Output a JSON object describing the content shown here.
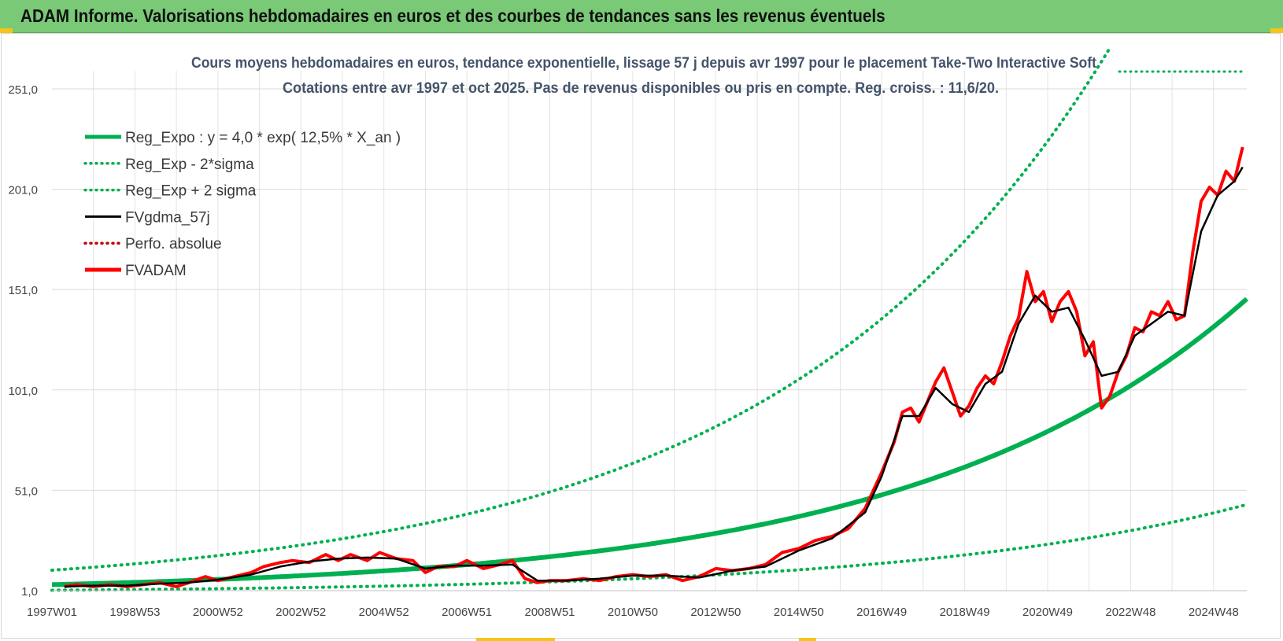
{
  "header": {
    "title": "ADAM Informe. Valorisations hebdomadaires en euros et des courbes de tendances sans les revenus éventuels"
  },
  "colors": {
    "header_bg": "#7ac977",
    "trend": "#00b050",
    "price": "#ff0000",
    "average": "#000000",
    "perfo": "#c00000",
    "title_text": "#44546a"
  },
  "chart_data": {
    "type": "line",
    "title": "Cours moyens hebdomadaires en euros, tendance exponentielle, lissage 57 j depuis avr 1997 pour le placement Take-Two Interactive Soft",
    "subtitle": "Cotations entre avr 1997 et oct 2025.  Pas de revenus disponibles ou pris en compte. Reg. croiss. : 11,6/20.",
    "xlabel": "",
    "ylabel": "",
    "x_range": [
      1997.0,
      2025.8
    ],
    "ylim": [
      1.0,
      260.0
    ],
    "y_ticks": [
      "1,0",
      "51,0",
      "101,0",
      "151,0",
      "201,0",
      "251,0"
    ],
    "y_tick_values": [
      1,
      51,
      101,
      151,
      201,
      251
    ],
    "x_tick_labels": [
      "1997W01",
      "1998W53",
      "2000W52",
      "2002W52",
      "2004W52",
      "2006W51",
      "2008W51",
      "2010W50",
      "2012W50",
      "2014W50",
      "2016W49",
      "2018W49",
      "2020W49",
      "2022W48",
      "2024W48"
    ],
    "x_tick_values": [
      1997.0,
      1999.0,
      2001.0,
      2003.0,
      2005.0,
      2007.0,
      2009.0,
      2011.0,
      2013.0,
      2015.0,
      2017.0,
      2019.0,
      2021.0,
      2023.0,
      2025.0
    ],
    "grid": true,
    "legend_position": "top-left",
    "legend": [
      {
        "label": "Reg_Expo : y = 4,0 * exp( 12,5% *  X_an )",
        "style": "solid-thick",
        "color": "#00b050"
      },
      {
        "label": "Reg_Exp - 2*sigma",
        "style": "dotted",
        "color": "#00b050"
      },
      {
        "label": "Reg_Exp + 2 sigma",
        "style": "dotted",
        "color": "#00b050"
      },
      {
        "label": "FVgdma_57j",
        "style": "solid",
        "color": "#000000"
      },
      {
        "label": "Perfo. absolue",
        "style": "dotted",
        "color": "#c00000"
      },
      {
        "label": "FVADAM",
        "style": "solid-thick",
        "color": "#ff0000"
      }
    ],
    "regression": {
      "a": 4.0,
      "rate": 0.125,
      "lower_factor": 0.3,
      "upper_factor": 2.8
    },
    "series": [
      {
        "name": "FVADAM",
        "x": [
          1997.3,
          1997.6,
          1998.0,
          1998.4,
          1998.8,
          1999.2,
          1999.6,
          2000.0,
          2000.3,
          2000.7,
          2001.0,
          2001.4,
          2001.8,
          2002.1,
          2002.5,
          2002.8,
          2003.2,
          2003.6,
          2003.9,
          2004.2,
          2004.6,
          2004.9,
          2005.3,
          2005.7,
          2006.0,
          2006.3,
          2006.7,
          2007.0,
          2007.4,
          2007.8,
          2008.1,
          2008.4,
          2008.7,
          2009.0,
          2009.4,
          2009.8,
          2010.2,
          2010.6,
          2011.0,
          2011.4,
          2011.8,
          2012.2,
          2012.6,
          2013.0,
          2013.4,
          2013.8,
          2014.2,
          2014.6,
          2015.0,
          2015.4,
          2015.8,
          2016.2,
          2016.6,
          2017.0,
          2017.3,
          2017.5,
          2017.7,
          2017.9,
          2018.1,
          2018.3,
          2018.5,
          2018.7,
          2018.9,
          2019.1,
          2019.3,
          2019.5,
          2019.7,
          2019.9,
          2020.1,
          2020.3,
          2020.5,
          2020.7,
          2020.9,
          2021.1,
          2021.3,
          2021.5,
          2021.7,
          2021.9,
          2022.1,
          2022.3,
          2022.5,
          2022.7,
          2022.9,
          2023.1,
          2023.3,
          2023.5,
          2023.7,
          2023.9,
          2024.1,
          2024.3,
          2024.5,
          2024.7,
          2024.9,
          2025.1,
          2025.3,
          2025.5,
          2025.7
        ],
        "y": [
          3,
          4,
          3,
          4,
          3,
          4,
          5,
          3,
          5,
          8,
          6,
          8,
          10,
          13,
          15,
          16,
          15,
          19,
          16,
          19,
          16,
          20,
          17,
          16,
          10,
          13,
          13,
          16,
          12,
          14,
          16,
          7,
          5,
          6,
          6,
          7,
          6,
          8,
          9,
          8,
          9,
          6,
          8,
          12,
          11,
          12,
          14,
          20,
          22,
          26,
          28,
          32,
          42,
          60,
          75,
          90,
          92,
          85,
          95,
          105,
          112,
          100,
          88,
          93,
          102,
          108,
          104,
          115,
          128,
          137,
          160,
          145,
          150,
          135,
          145,
          150,
          140,
          118,
          125,
          92,
          98,
          110,
          118,
          132,
          130,
          140,
          138,
          145,
          136,
          138,
          170,
          195,
          202,
          198,
          210,
          205,
          222
        ]
      },
      {
        "name": "FVgdma_57j",
        "x": [
          1997.3,
          1998.0,
          1998.8,
          1999.6,
          2000.3,
          2001.0,
          2001.8,
          2002.5,
          2003.2,
          2003.9,
          2004.6,
          2005.3,
          2006.0,
          2006.7,
          2007.4,
          2008.1,
          2008.7,
          2009.4,
          2010.2,
          2011.0,
          2011.8,
          2012.6,
          2013.4,
          2014.2,
          2015.0,
          2015.8,
          2016.6,
          2017.0,
          2017.5,
          2017.9,
          2018.3,
          2018.7,
          2019.1,
          2019.5,
          2019.9,
          2020.3,
          2020.7,
          2021.1,
          2021.5,
          2021.9,
          2022.3,
          2022.7,
          2023.1,
          2023.5,
          2023.9,
          2024.3,
          2024.7,
          2025.1,
          2025.5,
          2025.7
        ],
        "y": [
          3,
          3.5,
          3.5,
          4.5,
          5,
          6.5,
          9,
          13,
          15.5,
          17,
          17.5,
          17,
          12,
          13.5,
          13.5,
          14,
          6,
          6,
          7,
          8.5,
          8.5,
          7.5,
          11,
          13,
          21,
          27,
          40,
          58,
          88,
          88,
          102,
          94,
          90,
          104,
          110,
          134,
          148,
          140,
          142,
          126,
          108,
          110,
          128,
          134,
          140,
          138,
          180,
          198,
          205,
          212
        ]
      }
    ]
  }
}
